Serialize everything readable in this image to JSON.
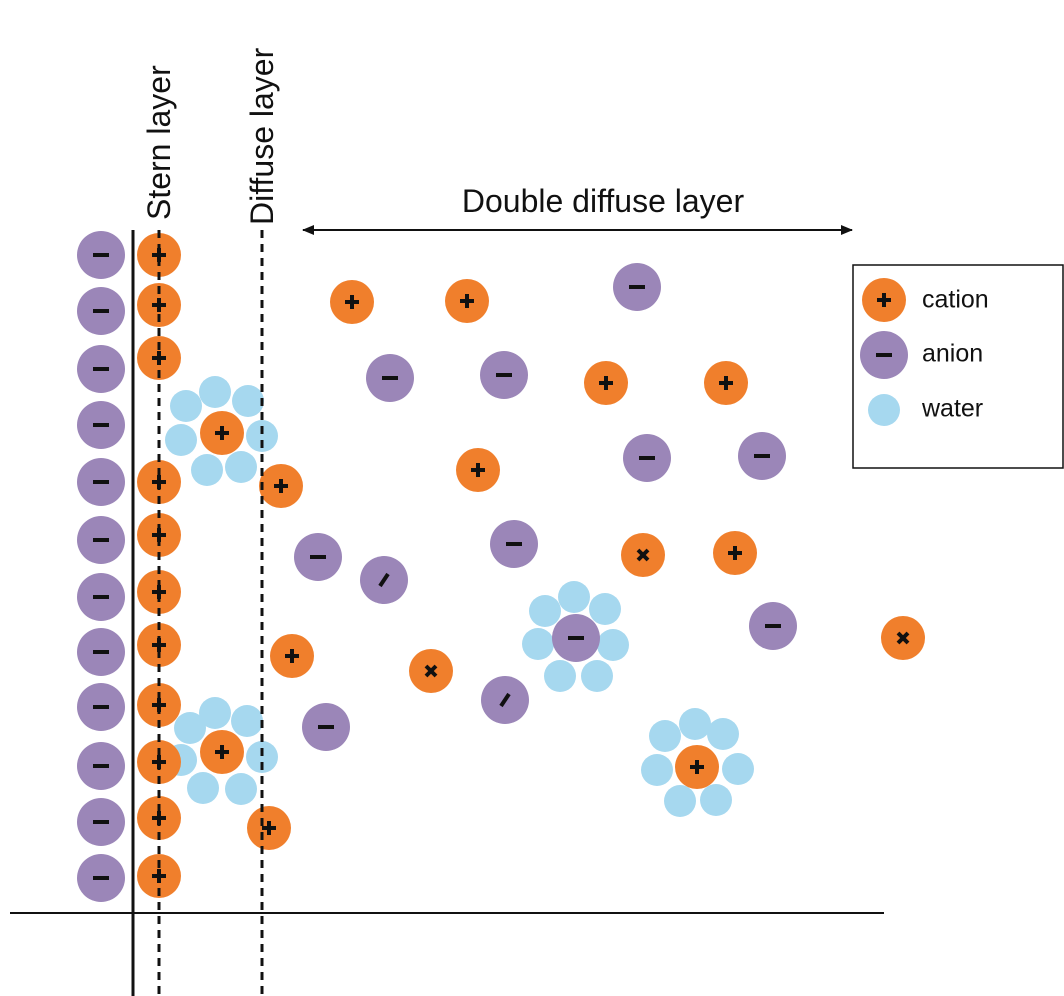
{
  "labels": {
    "stern_layer": "Stern layer",
    "diffuse_layer": "Diffuse layer",
    "double_diffuse_layer": "Double diffuse layer"
  },
  "legend": {
    "items": [
      {
        "label": "cation"
      },
      {
        "label": "anion"
      },
      {
        "label": "water"
      }
    ]
  }
}
